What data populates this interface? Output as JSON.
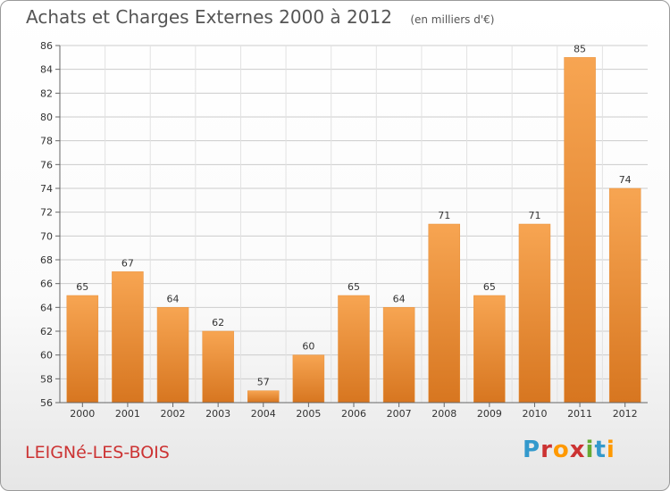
{
  "header": {
    "title": "Achats et Charges Externes 2000 à 2012",
    "subtitle": "(en milliers d'€)"
  },
  "footer": {
    "commune": "LEIGNé-LES-BOIS",
    "brand": "Proxiti",
    "brand_colors": [
      "#3399cc",
      "#cc3333",
      "#ff9900",
      "#cc3333",
      "#66aa33",
      "#3399cc",
      "#ff9900"
    ]
  },
  "colors": {
    "bar_top": "#f7a552",
    "bar_bottom": "#d77620",
    "grid": "#cccccc",
    "axis": "#666666"
  },
  "chart_data": {
    "type": "bar",
    "title": "Achats et Charges Externes 2000 à 2012",
    "subtitle": "(en milliers d'€)",
    "categories": [
      "2000",
      "2001",
      "2002",
      "2003",
      "2004",
      "2005",
      "2006",
      "2007",
      "2008",
      "2009",
      "2010",
      "2011",
      "2012"
    ],
    "values": [
      65,
      67,
      64,
      62,
      57,
      60,
      65,
      64,
      71,
      65,
      71,
      85,
      74
    ],
    "data_labels": [
      "65",
      "67",
      "64",
      "62",
      "57",
      "60",
      "65",
      "64",
      "71",
      "65",
      "71",
      "85",
      "74"
    ],
    "ylim": [
      56,
      86
    ],
    "yticks": [
      56,
      58,
      60,
      62,
      64,
      66,
      68,
      70,
      72,
      74,
      76,
      78,
      80,
      82,
      84,
      86
    ],
    "xlabel": "",
    "ylabel": "",
    "grid": true,
    "legend": "none"
  }
}
